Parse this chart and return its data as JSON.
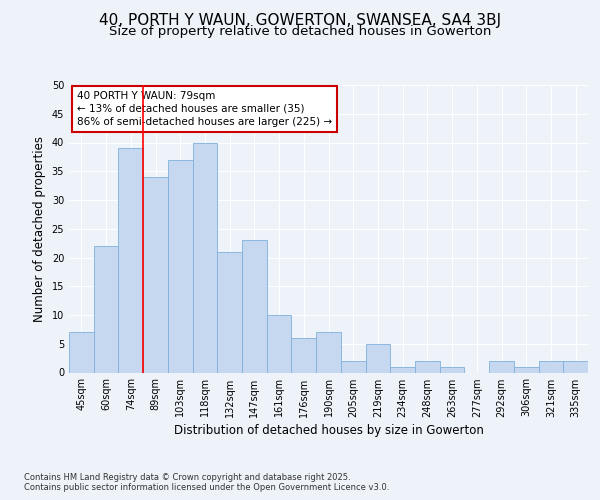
{
  "title_line1": "40, PORTH Y WAUN, GOWERTON, SWANSEA, SA4 3BJ",
  "title_line2": "Size of property relative to detached houses in Gowerton",
  "xlabel": "Distribution of detached houses by size in Gowerton",
  "ylabel": "Number of detached properties",
  "categories": [
    "45sqm",
    "60sqm",
    "74sqm",
    "89sqm",
    "103sqm",
    "118sqm",
    "132sqm",
    "147sqm",
    "161sqm",
    "176sqm",
    "190sqm",
    "205sqm",
    "219sqm",
    "234sqm",
    "248sqm",
    "263sqm",
    "277sqm",
    "292sqm",
    "306sqm",
    "321sqm",
    "335sqm"
  ],
  "values": [
    7,
    22,
    39,
    34,
    37,
    40,
    21,
    23,
    10,
    6,
    7,
    2,
    5,
    1,
    2,
    1,
    0,
    2,
    1,
    2,
    2
  ],
  "bar_color": "#c5d8f0",
  "bar_edge_color": "#7fb0dd",
  "bar_edge_width": 0.6,
  "background_color": "#eef2f9",
  "grid_color": "#ffffff",
  "red_line_index": 2.5,
  "annotation_text": "40 PORTH Y WAUN: 79sqm\n← 13% of detached houses are smaller (35)\n86% of semi-detached houses are larger (225) →",
  "annotation_box_color": "#ffffff",
  "annotation_border_color": "#cc0000",
  "ylim": [
    0,
    50
  ],
  "yticks": [
    0,
    5,
    10,
    15,
    20,
    25,
    30,
    35,
    40,
    45,
    50
  ],
  "footer_text": "Contains HM Land Registry data © Crown copyright and database right 2025.\nContains public sector information licensed under the Open Government Licence v3.0.",
  "title_fontsize": 11,
  "subtitle_fontsize": 9.5,
  "axis_label_fontsize": 8.5,
  "tick_fontsize": 7,
  "annotation_fontsize": 7.5,
  "footer_fontsize": 6
}
